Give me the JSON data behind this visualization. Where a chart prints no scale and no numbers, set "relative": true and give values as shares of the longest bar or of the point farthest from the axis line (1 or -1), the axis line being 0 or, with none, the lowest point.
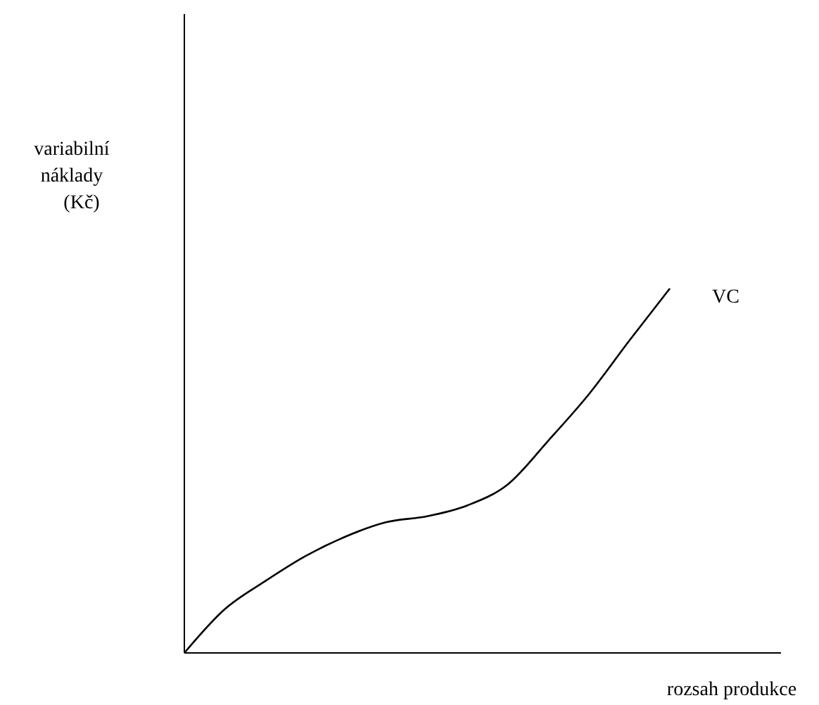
{
  "chart_data": {
    "type": "line",
    "relative": true,
    "xlabel": "rozsah produkce",
    "ylabel": "variabilní náklady (Kč)",
    "categories": [
      null,
      null,
      null,
      null,
      null,
      null,
      null,
      null,
      null,
      null,
      null,
      null,
      null
    ],
    "series": [
      {
        "name": "VC",
        "color": "#000000",
        "values": [
          0,
          0.12,
          0.197,
          0.266,
          0.32,
          0.359,
          0.375,
          0.405,
          0.463,
          0.583,
          0.71,
          0.857,
          1
        ]
      }
    ],
    "marker": "none",
    "line_style": "solid"
  }
}
